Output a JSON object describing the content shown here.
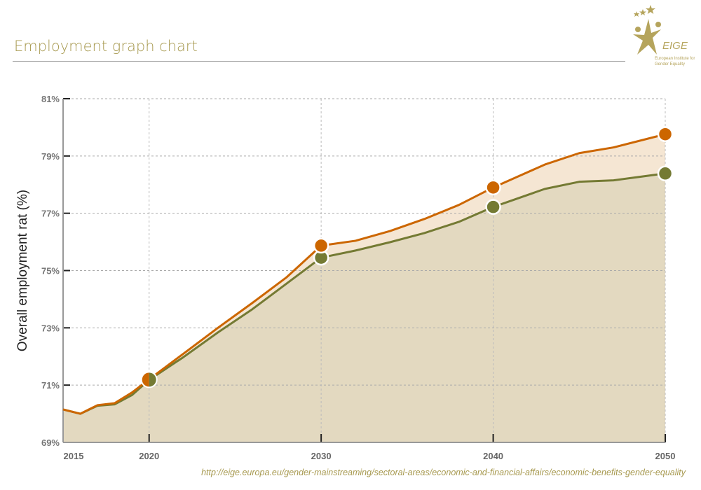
{
  "header": {
    "title": "Employment graph chart"
  },
  "logo": {
    "name": "EIGE",
    "subtitle": "European Institute for Gender Equality"
  },
  "footer": {
    "url": "http://eige.europa.eu/gender-mainstreaming/sectoral-areas/economic-and-financial-affairs/economic-benefits-gender-equality"
  },
  "chart_data": {
    "type": "area",
    "title": "",
    "ylabel": "Overall employment rat (%)",
    "xlabel": "",
    "xlim": [
      2015,
      2050
    ],
    "ylim": [
      69,
      81
    ],
    "x_ticks": [
      2015,
      2020,
      2030,
      2040,
      2050
    ],
    "y_ticks": [
      69,
      71,
      73,
      75,
      77,
      79,
      81
    ],
    "y_tick_labels": [
      "69%",
      "71%",
      "73%",
      "75%",
      "77%",
      "79%",
      "81%"
    ],
    "grid": true,
    "x": [
      2015,
      2016,
      2017,
      2018,
      2019,
      2020,
      2022,
      2024,
      2026,
      2028,
      2030,
      2032,
      2034,
      2036,
      2038,
      2040,
      2043,
      2045,
      2047,
      2050
    ],
    "series": [
      {
        "color": "#cc6600",
        "fill": "#f5e6d3",
        "markers": [
          2020,
          2030,
          2040,
          2050
        ],
        "values": [
          70.15,
          70.0,
          70.3,
          70.37,
          70.74,
          71.2,
          72.1,
          73.0,
          73.87,
          74.77,
          75.87,
          76.04,
          76.38,
          76.8,
          77.29,
          77.9,
          78.7,
          79.1,
          79.3,
          79.76
        ]
      },
      {
        "color": "#747a33",
        "fill": "#e3d9c0",
        "markers": [
          2020,
          2030,
          2040,
          2050
        ],
        "values": [
          70.15,
          70.0,
          70.28,
          70.33,
          70.65,
          71.18,
          71.98,
          72.84,
          73.65,
          74.55,
          75.45,
          75.7,
          75.99,
          76.31,
          76.7,
          77.22,
          77.85,
          78.1,
          78.15,
          78.39
        ]
      }
    ]
  }
}
